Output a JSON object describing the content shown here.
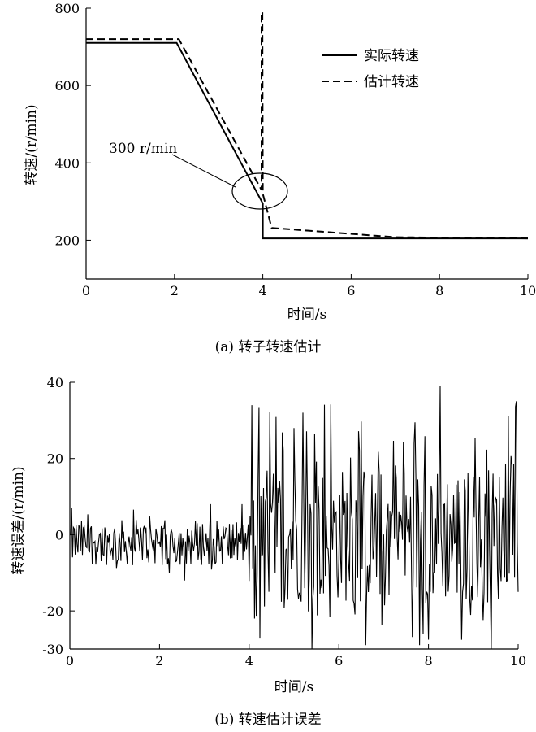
{
  "chart_data": [
    {
      "type": "line",
      "caption": "(a) 转子转速估计",
      "xlabel": "时间/s",
      "ylabel": "转速/(r/min)",
      "xlim": [
        0,
        10
      ],
      "ylim": [
        100,
        800
      ],
      "x_ticks": [
        "0",
        "2",
        "4",
        "6",
        "8",
        "10"
      ],
      "y_ticks": [
        "200",
        "400",
        "600",
        "800"
      ],
      "grid": false,
      "legend_position": "top-right",
      "annotation": {
        "text": "300 r/min",
        "at": [
          4,
          290
        ]
      },
      "series": [
        {
          "name": "实际转速",
          "style": "solid",
          "points": [
            [
              0,
              710
            ],
            [
              2.05,
              710
            ],
            [
              4.0,
              295
            ],
            [
              4.0,
              205
            ],
            [
              10,
              205
            ]
          ]
        },
        {
          "name": "估计转速",
          "style": "dashed",
          "points": [
            [
              0,
              720
            ],
            [
              2.1,
              720
            ],
            [
              3.97,
              330
            ],
            [
              3.97,
              790
            ],
            [
              3.99,
              790
            ],
            [
              4.0,
              320
            ],
            [
              4.2,
              232
            ],
            [
              5.0,
              225
            ],
            [
              7.0,
              208
            ],
            [
              10,
              205
            ]
          ]
        }
      ]
    },
    {
      "type": "line",
      "caption": "(b) 转速估计误差",
      "xlabel": "时间/s",
      "ylabel": "转速误差/(r/min)",
      "xlim": [
        0,
        10
      ],
      "ylim": [
        -30,
        40
      ],
      "x_ticks": [
        "0",
        "2",
        "4",
        "6",
        "8",
        "10"
      ],
      "y_ticks": [
        "40",
        "20",
        "0",
        "-20",
        "-30"
      ],
      "grid": false,
      "series": [
        {
          "style": "solid",
          "description_of_shape": "noise with amplitude about ±8 before t=4 s and about ±30 after t=4 s; peaks near 34 at t≈4.05, 39 at t≈8.25, 35 at t≈9.95, lows near -30 at t≈5.4 and t≈9.4",
          "sample_dt": 0.02,
          "pre_range": [
            -12,
            8
          ],
          "post_range": [
            -30,
            39
          ]
        }
      ]
    }
  ]
}
